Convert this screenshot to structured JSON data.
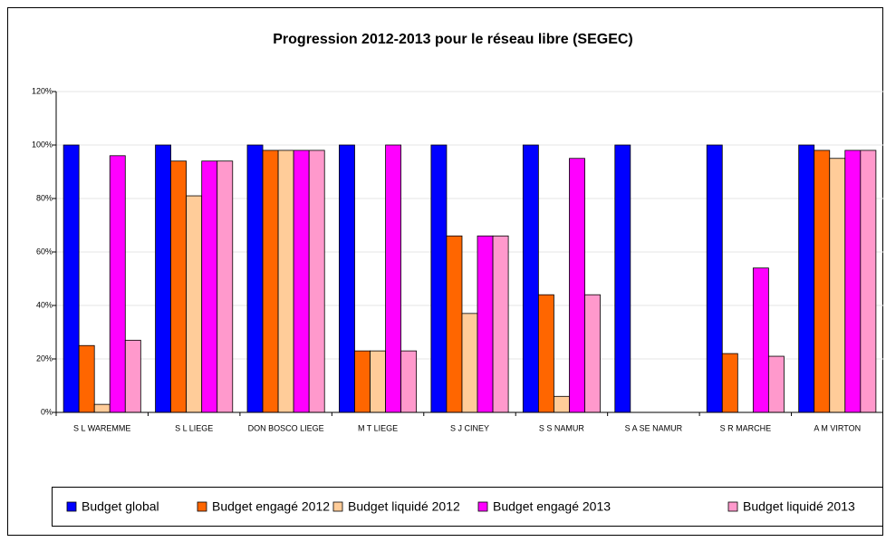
{
  "chart_data": {
    "type": "bar",
    "title": "Progression 2012-2013 pour le réseau libre (SEGEC)",
    "categories": [
      "S L WAREMME",
      "S L LIEGE",
      "DON BOSCO LIEGE",
      "M T LIEGE",
      "S J CINEY",
      "S S NAMUR",
      "S A SE NAMUR",
      "S R MARCHE",
      "A M VIRTON"
    ],
    "series": [
      {
        "name": "Budget global",
        "color": "#0000ff",
        "values": [
          100,
          100,
          100,
          100,
          100,
          100,
          100,
          100,
          100
        ]
      },
      {
        "name": "Budget engagé 2012",
        "color": "#ff6600",
        "values": [
          25,
          94,
          98,
          23,
          66,
          44,
          null,
          22,
          98
        ]
      },
      {
        "name": "Budget liquidé 2012",
        "color": "#ffcc99",
        "values": [
          3,
          81,
          98,
          23,
          37,
          6,
          null,
          null,
          95
        ]
      },
      {
        "name": "Budget engagé 2013",
        "color": "#ff00ff",
        "values": [
          96,
          94,
          98,
          100,
          66,
          95,
          null,
          54,
          98
        ]
      },
      {
        "name": "Budget liquidé 2013",
        "color": "#ff99cc",
        "values": [
          27,
          94,
          98,
          23,
          66,
          44,
          null,
          21,
          98
        ]
      }
    ],
    "ylim": [
      0,
      120
    ],
    "yticks": [
      {
        "value": 0,
        "label": "0%"
      },
      {
        "value": 20,
        "label": "20%"
      },
      {
        "value": 40,
        "label": "40%"
      },
      {
        "value": 60,
        "label": "60%"
      },
      {
        "value": 80,
        "label": "80%"
      },
      {
        "value": 100,
        "label": "100%"
      },
      {
        "value": 120,
        "label": "120%"
      }
    ],
    "grid": true,
    "legend": "bottom"
  }
}
